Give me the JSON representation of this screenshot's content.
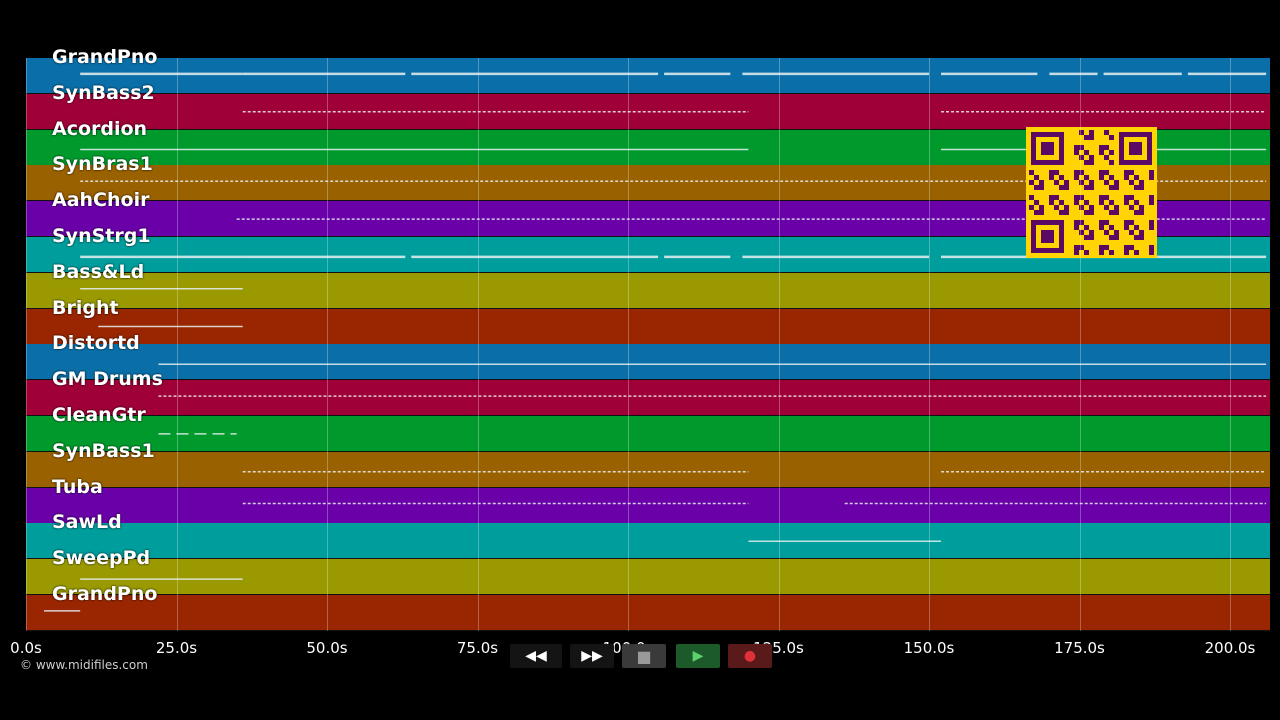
{
  "tracks": [
    {
      "label": "GrandPno",
      "color": "#0a6fa8"
    },
    {
      "label": "SynBass2",
      "color": "#a00038"
    },
    {
      "label": "Acordion",
      "color": "#009a2c"
    },
    {
      "label": "SynBras1",
      "color": "#9a6100"
    },
    {
      "label": "AahChoir",
      "color": "#6a00a8"
    },
    {
      "label": "SynStrg1",
      "color": "#009d9d"
    },
    {
      "label": "Bass&Ld",
      "color": "#9a9a00"
    },
    {
      "label": "Bright",
      "color": "#992600"
    },
    {
      "label": "Distortd",
      "color": "#0a6fa8"
    },
    {
      "label": "GM Drums",
      "color": "#a00038"
    },
    {
      "label": "CleanGtr",
      "color": "#009a2c"
    },
    {
      "label": "SynBass1",
      "color": "#9a6100"
    },
    {
      "label": "Tuba",
      "color": "#6a00a8"
    },
    {
      "label": "SawLd",
      "color": "#009d9d"
    },
    {
      "label": "SweepPd",
      "color": "#9a9a00"
    },
    {
      "label": "GrandPno",
      "color": "#992600"
    }
  ],
  "time_axis": {
    "ticks": [
      "0.0s",
      "25.0s",
      "50.0s",
      "75.0s",
      "100.0s",
      "125.0s",
      "150.0s",
      "175.0s",
      "200.0s"
    ],
    "tick_values": [
      0,
      25,
      50,
      75,
      100,
      125,
      150,
      175,
      200
    ],
    "max_seconds": 206.5
  },
  "notes": [
    {
      "track": 0,
      "segments": [
        [
          9,
          36
        ],
        [
          36,
          63
        ],
        [
          64,
          105
        ],
        [
          106,
          117
        ],
        [
          119,
          150
        ],
        [
          152,
          168
        ],
        [
          170,
          178
        ],
        [
          179,
          192
        ],
        [
          193,
          206
        ]
      ]
    },
    {
      "track": 1,
      "segments": [
        [
          36,
          120
        ],
        [
          152,
          206
        ]
      ]
    },
    {
      "track": 2,
      "segments": [
        [
          9,
          120
        ],
        [
          152,
          206
        ]
      ]
    },
    {
      "track": 3,
      "segments": [
        [
          9,
          206
        ]
      ]
    },
    {
      "track": 4,
      "segments": [
        [
          35,
          206
        ]
      ]
    },
    {
      "track": 5,
      "segments": [
        [
          9,
          36
        ],
        [
          36,
          63
        ],
        [
          64,
          105
        ],
        [
          106,
          117
        ],
        [
          119,
          150
        ],
        [
          152,
          206
        ]
      ]
    },
    {
      "track": 6,
      "segments": [
        [
          9,
          36
        ]
      ]
    },
    {
      "track": 7,
      "segments": [
        [
          12,
          36
        ]
      ]
    },
    {
      "track": 8,
      "segments": [
        [
          22,
          206
        ]
      ]
    },
    {
      "track": 9,
      "segments": [
        [
          22,
          206
        ]
      ]
    },
    {
      "track": 10,
      "segments": [
        [
          22,
          35
        ]
      ]
    },
    {
      "track": 11,
      "segments": [
        [
          36,
          120
        ],
        [
          152,
          206
        ]
      ]
    },
    {
      "track": 12,
      "segments": [
        [
          36,
          120
        ],
        [
          136,
          206
        ]
      ]
    },
    {
      "track": 13,
      "segments": [
        [
          120,
          152
        ]
      ]
    },
    {
      "track": 14,
      "segments": [
        [
          9,
          36
        ]
      ]
    },
    {
      "track": 15,
      "segments": [
        [
          3,
          9
        ]
      ]
    }
  ],
  "credit": "© www.midifiles.com",
  "transport": [
    {
      "name": "rewind-icon",
      "glyph": "◀◀",
      "bg": "#141414"
    },
    {
      "name": "fast-forward-icon",
      "glyph": "▶▶",
      "bg": "#141414"
    },
    {
      "name": "stop-icon",
      "glyph": "■",
      "bg": "#3a3a3a"
    },
    {
      "name": "play-icon",
      "glyph": "▶",
      "bg": "#1c5a2a"
    },
    {
      "name": "record-icon",
      "glyph": "●",
      "bg": "#5a1a1a"
    }
  ],
  "colors": {
    "background": "#000000",
    "qr_background": "#ffd400",
    "qr_foreground": "#5a0a63"
  }
}
